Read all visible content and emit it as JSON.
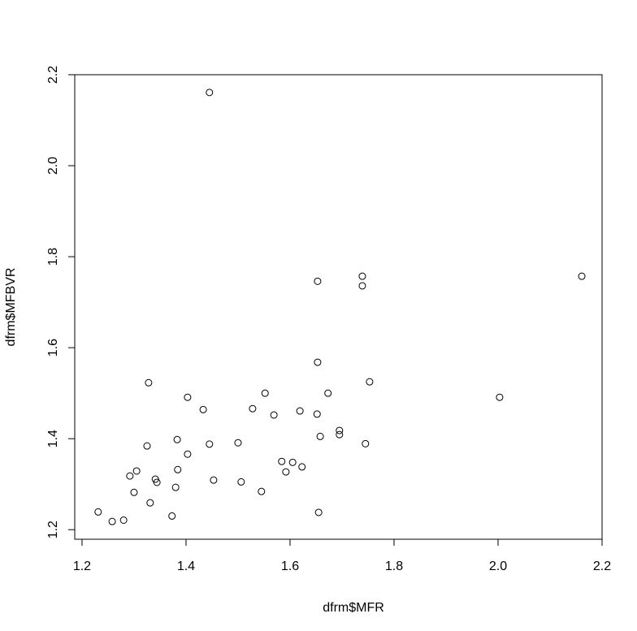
{
  "chart_data": {
    "type": "scatter",
    "x_label": "dfrm$MFR",
    "y_label": "dfrm$MFBVR",
    "x": [
      1.445,
      2.161,
      1.739,
      1.739,
      1.653,
      1.653,
      1.328,
      1.753,
      1.552,
      1.673,
      1.403,
      2.003,
      1.433,
      1.528,
      1.619,
      1.569,
      1.652,
      1.695,
      1.695,
      1.658,
      1.383,
      1.5,
      1.445,
      1.745,
      1.325,
      1.403,
      1.584,
      1.605,
      1.623,
      1.384,
      1.305,
      1.592,
      1.292,
      1.341,
      1.344,
      1.453,
      1.506,
      1.38,
      1.3,
      1.545,
      1.331,
      1.655,
      1.231,
      1.373,
      1.28,
      1.258
    ],
    "values": [
      2.161,
      1.757,
      1.757,
      1.736,
      1.746,
      1.568,
      1.523,
      1.525,
      1.5,
      1.5,
      1.491,
      1.491,
      1.464,
      1.466,
      1.461,
      1.452,
      1.454,
      1.418,
      1.409,
      1.405,
      1.398,
      1.391,
      1.388,
      1.389,
      1.384,
      1.366,
      1.35,
      1.348,
      1.338,
      1.332,
      1.329,
      1.327,
      1.318,
      1.311,
      1.304,
      1.309,
      1.305,
      1.293,
      1.282,
      1.284,
      1.259,
      1.238,
      1.239,
      1.23,
      1.221,
      1.218
    ],
    "color": "#000000",
    "xlim": [
      1.186,
      2.2
    ],
    "ylim": [
      1.179,
      2.2
    ],
    "xticks": [
      1.2,
      1.4,
      1.6,
      1.8,
      {
        "value": 2,
        "label": "2.0"
      },
      2.2
    ],
    "yticks": [
      1.2,
      1.4,
      1.6,
      1.8,
      {
        "value": 2,
        "label": "2.0"
      },
      2.2
    ]
  }
}
